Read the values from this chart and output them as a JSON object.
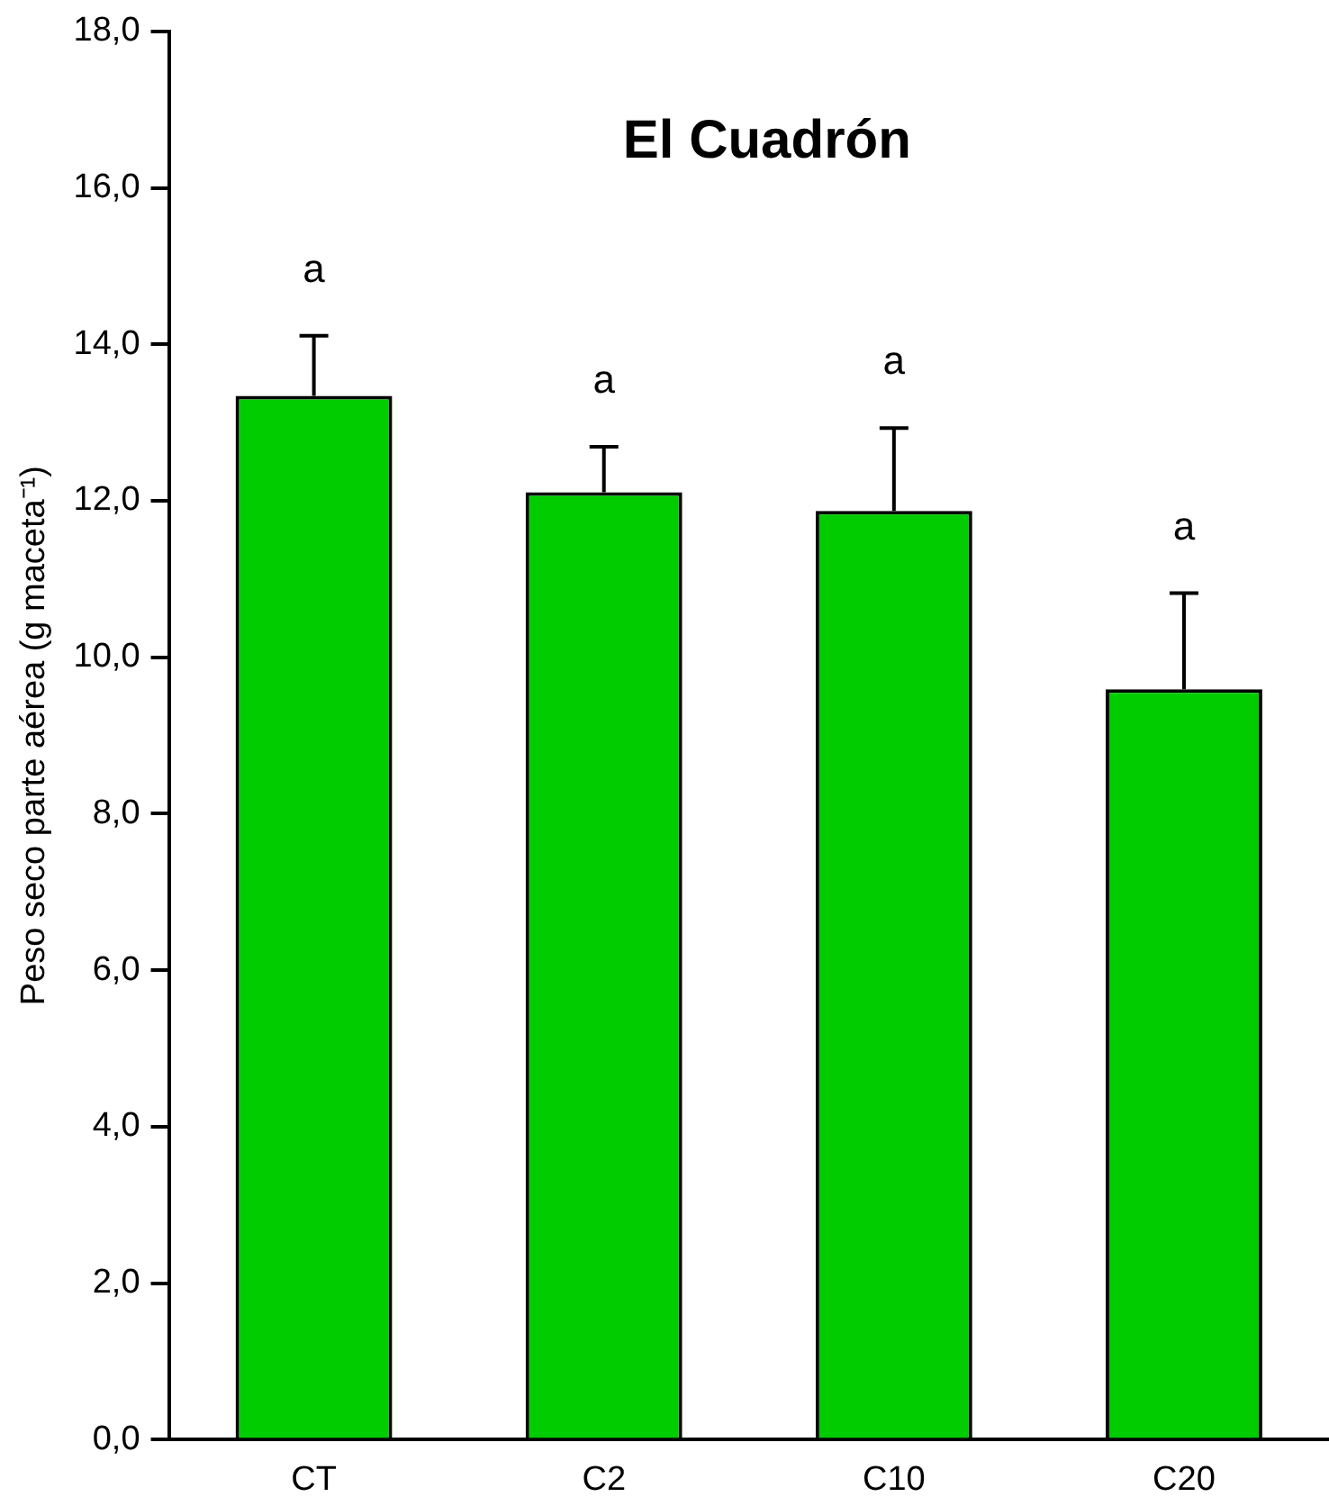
{
  "chart_data": {
    "type": "bar",
    "title": "El Cuadrón",
    "ylabel": "Peso seco parte aérea (g maceta⁻¹)",
    "categories": [
      "CT",
      "C2",
      "C10",
      "C20"
    ],
    "series": [
      {
        "color": "#00cc00",
        "values": [
          13.34,
          12.11,
          11.87,
          9.59
        ],
        "errors": [
          0.77,
          0.58,
          1.06,
          1.23
        ]
      }
    ],
    "ylim": [
      0,
      18
    ],
    "yticks": [
      {
        "value": 0,
        "label": "0,0"
      },
      {
        "value": 2,
        "label": "2,0"
      },
      {
        "value": 4,
        "label": "4,0"
      },
      {
        "value": 6,
        "label": "6,0"
      },
      {
        "value": 8,
        "label": "8,0"
      },
      {
        "value": 10,
        "label": "10,0"
      },
      {
        "value": 12,
        "label": "12,0"
      },
      {
        "value": 14,
        "label": "14,0"
      },
      {
        "value": 16,
        "label": "16,0"
      },
      {
        "value": 18,
        "label": "18,0"
      }
    ],
    "annotations": [
      "a",
      "a",
      "a",
      "a"
    ],
    "grid": false,
    "legend": false
  }
}
